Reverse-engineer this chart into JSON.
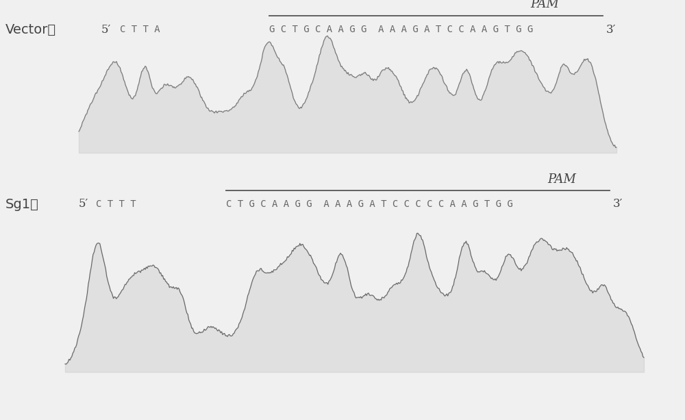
{
  "bg_color": "#f0f0f0",
  "vector_label": "Vector：",
  "sg1_label": "Sg1：",
  "pam_label": "PAM",
  "vector_prefix": "C T T A",
  "vector_underlined": "G C T G C A A G G  A A A G A T C C A A G T G G",
  "sg1_prefix": "C T T T",
  "sg1_underlined": "C T G C A A G G  A A A G A T C C C C C A A G T G G",
  "prime5": "5′",
  "prime3": "3′",
  "dark_color": "#444444",
  "mid_color": "#666666",
  "light_color": "#999999",
  "line_color": "#555555",
  "chrom1_color": "#777777",
  "chrom1_fill": "#aaaaaa",
  "chrom2_color": "#666666",
  "chrom2_fill": "#aaaaaa"
}
